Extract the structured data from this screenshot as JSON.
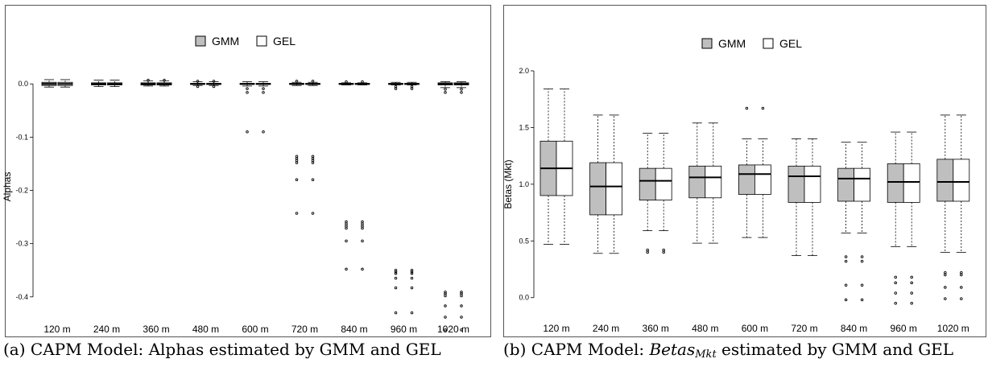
{
  "panels": [
    {
      "caption_num": "(a)",
      "caption_text": "CAPM Model: Alphas estimated by GMM and GEL",
      "caption_var": "",
      "caption_sub": "",
      "caption_rest": ""
    },
    {
      "caption_num": "(b)",
      "caption_text": "CAPM Model: ",
      "caption_var": "Betas",
      "caption_sub": "Mkt",
      "caption_rest": " estimated by GMM and GEL"
    }
  ],
  "colors": {
    "gmm": "#bfbfbf",
    "gel": "#ffffff",
    "frame": "#555555"
  },
  "chart_data": [
    {
      "type": "boxplot",
      "title": "",
      "xlabel": "",
      "ylabel": "Alphas",
      "ylim": [
        -0.46,
        0.02
      ],
      "yticks": [
        0.0,
        -0.1,
        -0.2,
        -0.3,
        -0.4
      ],
      "ytick_labels": [
        "0.0",
        "-0.1",
        "-0.2",
        "-0.3",
        "-0.4"
      ],
      "legend": {
        "position": "top",
        "entries": [
          "GMM",
          "GEL"
        ]
      },
      "categories": [
        "120 m",
        "240 m",
        "360 m",
        "480 m",
        "600 m",
        "720 m",
        "840 m",
        "960 m",
        "1020 m"
      ],
      "series": [
        {
          "name": "GMM",
          "boxes": [
            {
              "lw": -0.006,
              "q1": -0.003,
              "med": 0.0,
              "q3": 0.003,
              "uw": 0.008,
              "out": []
            },
            {
              "lw": -0.005,
              "q1": -0.002,
              "med": 0.0,
              "q3": 0.002,
              "uw": 0.007,
              "out": []
            },
            {
              "lw": -0.004,
              "q1": -0.002,
              "med": 0.0,
              "q3": 0.002,
              "uw": 0.006,
              "out": [
                0.007
              ]
            },
            {
              "lw": -0.003,
              "q1": -0.001,
              "med": 0.0,
              "q3": 0.001,
              "uw": 0.004,
              "out": [
                0.005,
                -0.005
              ]
            },
            {
              "lw": -0.004,
              "q1": -0.001,
              "med": 0.0,
              "q3": 0.001,
              "uw": 0.004,
              "out": [
                -0.009,
                -0.016,
                -0.09
              ]
            },
            {
              "lw": -0.003,
              "q1": -0.001,
              "med": 0.0,
              "q3": 0.001,
              "uw": 0.003,
              "out": [
                0.005,
                -0.136,
                -0.14,
                -0.144,
                -0.148,
                -0.18,
                -0.243
              ]
            },
            {
              "lw": -0.002,
              "q1": -0.001,
              "med": 0.0,
              "q3": 0.001,
              "uw": 0.002,
              "out": [
                0.004,
                -0.259,
                -0.263,
                -0.267,
                -0.271,
                -0.295,
                -0.348
              ]
            },
            {
              "lw": -0.002,
              "q1": -0.001,
              "med": 0.0,
              "q3": 0.001,
              "uw": 0.003,
              "out": [
                -0.005,
                -0.009,
                -0.35,
                -0.353,
                -0.356,
                -0.365,
                -0.383,
                -0.43
              ]
            },
            {
              "lw": -0.007,
              "q1": -0.002,
              "med": 0.0,
              "q3": 0.002,
              "uw": 0.004,
              "out": [
                -0.01,
                -0.016,
                -0.391,
                -0.394,
                -0.398,
                -0.417,
                -0.438,
                -0.462
              ]
            }
          ]
        },
        {
          "name": "GEL",
          "boxes": [
            {
              "lw": -0.006,
              "q1": -0.003,
              "med": 0.0,
              "q3": 0.003,
              "uw": 0.008,
              "out": []
            },
            {
              "lw": -0.005,
              "q1": -0.002,
              "med": 0.0,
              "q3": 0.002,
              "uw": 0.007,
              "out": []
            },
            {
              "lw": -0.004,
              "q1": -0.002,
              "med": 0.0,
              "q3": 0.002,
              "uw": 0.006,
              "out": [
                0.007
              ]
            },
            {
              "lw": -0.003,
              "q1": -0.001,
              "med": 0.0,
              "q3": 0.001,
              "uw": 0.004,
              "out": [
                0.005,
                -0.005
              ]
            },
            {
              "lw": -0.004,
              "q1": -0.001,
              "med": 0.0,
              "q3": 0.001,
              "uw": 0.004,
              "out": [
                -0.009,
                -0.016,
                -0.09
              ]
            },
            {
              "lw": -0.003,
              "q1": -0.001,
              "med": 0.0,
              "q3": 0.001,
              "uw": 0.003,
              "out": [
                0.005,
                -0.136,
                -0.14,
                -0.144,
                -0.148,
                -0.18,
                -0.243
              ]
            },
            {
              "lw": -0.002,
              "q1": -0.001,
              "med": 0.0,
              "q3": 0.001,
              "uw": 0.002,
              "out": [
                0.004,
                -0.259,
                -0.263,
                -0.267,
                -0.271,
                -0.295,
                -0.348
              ]
            },
            {
              "lw": -0.002,
              "q1": -0.001,
              "med": 0.0,
              "q3": 0.001,
              "uw": 0.003,
              "out": [
                -0.005,
                -0.009,
                -0.35,
                -0.353,
                -0.356,
                -0.365,
                -0.383,
                -0.43
              ]
            },
            {
              "lw": -0.007,
              "q1": -0.002,
              "med": 0.0,
              "q3": 0.002,
              "uw": 0.004,
              "out": [
                -0.01,
                -0.016,
                -0.391,
                -0.394,
                -0.398,
                -0.417,
                -0.438,
                -0.462
              ]
            }
          ]
        }
      ]
    },
    {
      "type": "boxplot",
      "title": "",
      "xlabel": "",
      "ylabel": "Betas (Mkt)",
      "ylim": [
        -0.08,
        2.0
      ],
      "yticks": [
        0.0,
        0.5,
        1.0,
        1.5,
        2.0
      ],
      "ytick_labels": [
        "0.0",
        "0.5",
        "1.0",
        "1.5",
        "2.0"
      ],
      "legend": {
        "position": "top",
        "entries": [
          "GMM",
          "GEL"
        ]
      },
      "categories": [
        "120 m",
        "240 m",
        "360 m",
        "480 m",
        "600 m",
        "720 m",
        "840 m",
        "960 m",
        "1020 m"
      ],
      "series": [
        {
          "name": "GMM",
          "boxes": [
            {
              "lw": 0.47,
              "q1": 0.9,
              "med": 1.14,
              "q3": 1.38,
              "uw": 1.84,
              "out": []
            },
            {
              "lw": 0.39,
              "q1": 0.73,
              "med": 0.98,
              "q3": 1.19,
              "uw": 1.61,
              "out": []
            },
            {
              "lw": 0.59,
              "q1": 0.86,
              "med": 1.03,
              "q3": 1.14,
              "uw": 1.45,
              "out": [
                0.42,
                0.4
              ]
            },
            {
              "lw": 0.48,
              "q1": 0.88,
              "med": 1.06,
              "q3": 1.16,
              "uw": 1.54,
              "out": []
            },
            {
              "lw": 0.53,
              "q1": 0.91,
              "med": 1.09,
              "q3": 1.17,
              "uw": 1.4,
              "out": [
                1.67
              ]
            },
            {
              "lw": 0.37,
              "q1": 0.84,
              "med": 1.07,
              "q3": 1.16,
              "uw": 1.4,
              "out": []
            },
            {
              "lw": 0.57,
              "q1": 0.85,
              "med": 1.05,
              "q3": 1.14,
              "uw": 1.37,
              "out": [
                0.36,
                0.32,
                0.11,
                -0.02
              ]
            },
            {
              "lw": 0.45,
              "q1": 0.84,
              "med": 1.02,
              "q3": 1.18,
              "uw": 1.46,
              "out": [
                0.18,
                0.13,
                0.04,
                -0.05
              ]
            },
            {
              "lw": 0.4,
              "q1": 0.85,
              "med": 1.02,
              "q3": 1.22,
              "uw": 1.61,
              "out": [
                0.22,
                0.2,
                0.09,
                -0.01
              ]
            }
          ]
        },
        {
          "name": "GEL",
          "boxes": [
            {
              "lw": 0.47,
              "q1": 0.9,
              "med": 1.14,
              "q3": 1.38,
              "uw": 1.84,
              "out": []
            },
            {
              "lw": 0.39,
              "q1": 0.73,
              "med": 0.98,
              "q3": 1.19,
              "uw": 1.61,
              "out": []
            },
            {
              "lw": 0.59,
              "q1": 0.86,
              "med": 1.03,
              "q3": 1.14,
              "uw": 1.45,
              "out": [
                0.42,
                0.4
              ]
            },
            {
              "lw": 0.48,
              "q1": 0.88,
              "med": 1.06,
              "q3": 1.16,
              "uw": 1.54,
              "out": []
            },
            {
              "lw": 0.53,
              "q1": 0.91,
              "med": 1.09,
              "q3": 1.17,
              "uw": 1.4,
              "out": [
                1.67
              ]
            },
            {
              "lw": 0.37,
              "q1": 0.84,
              "med": 1.07,
              "q3": 1.16,
              "uw": 1.4,
              "out": []
            },
            {
              "lw": 0.57,
              "q1": 0.85,
              "med": 1.05,
              "q3": 1.14,
              "uw": 1.37,
              "out": [
                0.36,
                0.32,
                0.11,
                -0.02
              ]
            },
            {
              "lw": 0.45,
              "q1": 0.84,
              "med": 1.02,
              "q3": 1.18,
              "uw": 1.46,
              "out": [
                0.18,
                0.13,
                0.04,
                -0.05
              ]
            },
            {
              "lw": 0.4,
              "q1": 0.85,
              "med": 1.02,
              "q3": 1.22,
              "uw": 1.61,
              "out": [
                0.22,
                0.2,
                0.09,
                -0.01
              ]
            }
          ]
        }
      ]
    }
  ]
}
